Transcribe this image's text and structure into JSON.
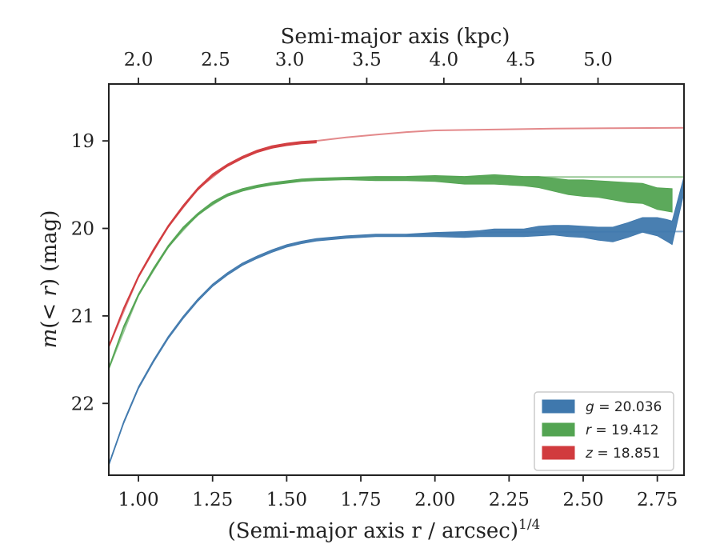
{
  "chart_data": {
    "type": "area",
    "xlabel_bottom": "(Semi-major axis r / arcsec)",
    "xlabel_bottom_exp": "1/4",
    "xlabel_top": "Semi-major axis (kpc)",
    "ylabel": "m(< r) (mag)",
    "xlim": [
      0.9,
      2.84
    ],
    "ylim_inverted": [
      22.82,
      18.35
    ],
    "x_ticks": [
      "1.00",
      "1.25",
      "1.50",
      "1.75",
      "2.00",
      "2.25",
      "2.50",
      "2.75"
    ],
    "x_tick_values": [
      1.0,
      1.25,
      1.5,
      1.75,
      2.0,
      2.25,
      2.5,
      2.75
    ],
    "top_ticks": [
      "2.0",
      "2.5",
      "3.0",
      "3.5",
      "4.0",
      "4.5",
      "5.0"
    ],
    "top_tick_values": [
      2.0,
      2.5,
      3.0,
      3.5,
      4.0,
      4.5,
      5.0
    ],
    "top_tick_x_positions": [
      1.0,
      1.26,
      1.51,
      1.77,
      2.03,
      2.29,
      2.55
    ],
    "y_ticks": [
      "19",
      "20",
      "21",
      "22"
    ],
    "y_tick_values": [
      19,
      20,
      21,
      22
    ],
    "grid": false,
    "legend_position": "lower-right",
    "legend": [
      {
        "band": "g",
        "text": "= 20.036",
        "color": "#3f78ad"
      },
      {
        "band": "r",
        "text": "= 19.412",
        "color": "#53a452"
      },
      {
        "band": "z",
        "text": "= 18.851",
        "color": "#d13b3e"
      }
    ],
    "series": [
      {
        "name": "g",
        "total": 20.036,
        "color": "#3f78ad",
        "x": [
          0.9,
          0.95,
          1.0,
          1.05,
          1.1,
          1.15,
          1.2,
          1.25,
          1.3,
          1.35,
          1.4,
          1.45,
          1.5,
          1.55,
          1.6,
          1.7,
          1.8,
          1.9,
          2.0,
          2.1,
          2.15,
          2.2,
          2.3,
          2.35,
          2.4,
          2.45,
          2.5,
          2.55,
          2.6,
          2.65,
          2.7,
          2.75,
          2.78,
          2.8,
          2.84
        ],
        "y": [
          22.7,
          22.22,
          21.82,
          21.52,
          21.25,
          21.02,
          20.82,
          20.65,
          20.52,
          20.41,
          20.33,
          20.26,
          20.2,
          20.16,
          20.13,
          20.1,
          20.08,
          20.08,
          20.07,
          20.07,
          20.06,
          20.05,
          20.05,
          20.03,
          20.02,
          20.03,
          20.04,
          20.06,
          20.07,
          20.02,
          19.96,
          19.98,
          20.02,
          20.05,
          19.5
        ],
        "lo": [
          0,
          0,
          0,
          0,
          0,
          0,
          0,
          0,
          0,
          0,
          0,
          0,
          0,
          0,
          0,
          0,
          0,
          0,
          0.01,
          0.02,
          0.02,
          0.03,
          0.03,
          0.04,
          0.04,
          0.05,
          0.05,
          0.06,
          0.07,
          0.07,
          0.07,
          0.09,
          0.11,
          0.12,
          0.08
        ],
        "hi": [
          0,
          0,
          0,
          0,
          0,
          0,
          0,
          0,
          0,
          0,
          0,
          0,
          0,
          0,
          0,
          0,
          0,
          0,
          0.01,
          0.02,
          0.02,
          0.03,
          0.03,
          0.04,
          0.04,
          0.05,
          0.05,
          0.06,
          0.07,
          0.07,
          0.07,
          0.09,
          0.11,
          0.12,
          0.08
        ]
      },
      {
        "name": "r",
        "total": 19.412,
        "color": "#53a452",
        "x": [
          0.9,
          0.95,
          1.0,
          1.05,
          1.1,
          1.15,
          1.2,
          1.25,
          1.3,
          1.35,
          1.4,
          1.45,
          1.5,
          1.55,
          1.6,
          1.7,
          1.8,
          1.9,
          2.0,
          2.1,
          2.2,
          2.25,
          2.3,
          2.35,
          2.4,
          2.45,
          2.5,
          2.55,
          2.6,
          2.65,
          2.7,
          2.75,
          2.8
        ],
        "y": [
          21.6,
          21.13,
          20.76,
          20.47,
          20.21,
          20.0,
          19.84,
          19.71,
          19.62,
          19.56,
          19.52,
          19.49,
          19.47,
          19.45,
          19.44,
          19.43,
          19.43,
          19.43,
          19.43,
          19.45,
          19.44,
          19.45,
          19.46,
          19.47,
          19.5,
          19.53,
          19.54,
          19.55,
          19.57,
          19.59,
          19.6,
          19.66,
          19.68
        ],
        "lo": [
          0,
          0,
          0,
          0,
          0,
          0,
          0,
          0,
          0,
          0,
          0,
          0,
          0,
          0,
          0,
          0,
          0.01,
          0.01,
          0.02,
          0.03,
          0.04,
          0.04,
          0.04,
          0.05,
          0.06,
          0.07,
          0.08,
          0.08,
          0.09,
          0.1,
          0.1,
          0.11,
          0.12
        ],
        "hi": [
          0,
          0,
          0,
          0,
          0,
          0,
          0,
          0,
          0,
          0,
          0,
          0,
          0,
          0,
          0,
          0,
          0.01,
          0.01,
          0.02,
          0.03,
          0.04,
          0.04,
          0.04,
          0.05,
          0.06,
          0.07,
          0.08,
          0.08,
          0.09,
          0.1,
          0.1,
          0.11,
          0.12
        ]
      },
      {
        "name": "z",
        "total": 18.851,
        "color": "#d13b3e",
        "x": [
          0.9,
          0.95,
          1.0,
          1.05,
          1.1,
          1.15,
          1.2,
          1.25,
          1.3,
          1.35,
          1.4,
          1.45,
          1.5,
          1.55,
          1.6
        ],
        "y": [
          21.35,
          20.92,
          20.55,
          20.25,
          19.98,
          19.75,
          19.55,
          19.39,
          19.28,
          19.19,
          19.12,
          19.07,
          19.04,
          19.02,
          19.01
        ],
        "lo": [
          0,
          0,
          0,
          0,
          0,
          0,
          0,
          0,
          0,
          0,
          0,
          0,
          0,
          0,
          0
        ],
        "hi": [
          0,
          0,
          0,
          0,
          0,
          0,
          0,
          0,
          0,
          0,
          0,
          0,
          0,
          0,
          0
        ]
      }
    ],
    "models": [
      {
        "name": "z model",
        "color": "#d13b3e",
        "x": [
          0.9,
          1.0,
          1.1,
          1.2,
          1.3,
          1.4,
          1.5,
          1.6,
          1.7,
          1.8,
          1.9,
          2.0,
          2.2,
          2.4,
          2.6,
          2.84
        ],
        "y": [
          21.35,
          20.55,
          19.98,
          19.55,
          19.28,
          19.12,
          19.04,
          19.0,
          18.96,
          18.93,
          18.9,
          18.88,
          18.87,
          18.86,
          18.855,
          18.851
        ]
      },
      {
        "name": "r model",
        "color": "#53a452",
        "x": [
          0.9,
          1.0,
          1.1,
          1.2,
          1.3,
          1.4,
          1.5,
          1.6,
          1.7,
          1.8,
          2.0,
          2.4,
          2.84
        ],
        "y": [
          21.6,
          20.76,
          20.21,
          19.84,
          19.62,
          19.52,
          19.47,
          19.44,
          19.43,
          19.42,
          19.415,
          19.413,
          19.412
        ]
      },
      {
        "name": "g model",
        "color": "#3f78ad",
        "x": [
          1.9,
          2.0,
          2.2,
          2.4,
          2.6,
          2.84
        ],
        "y": [
          20.08,
          20.06,
          20.045,
          20.04,
          20.037,
          20.036
        ]
      }
    ]
  }
}
